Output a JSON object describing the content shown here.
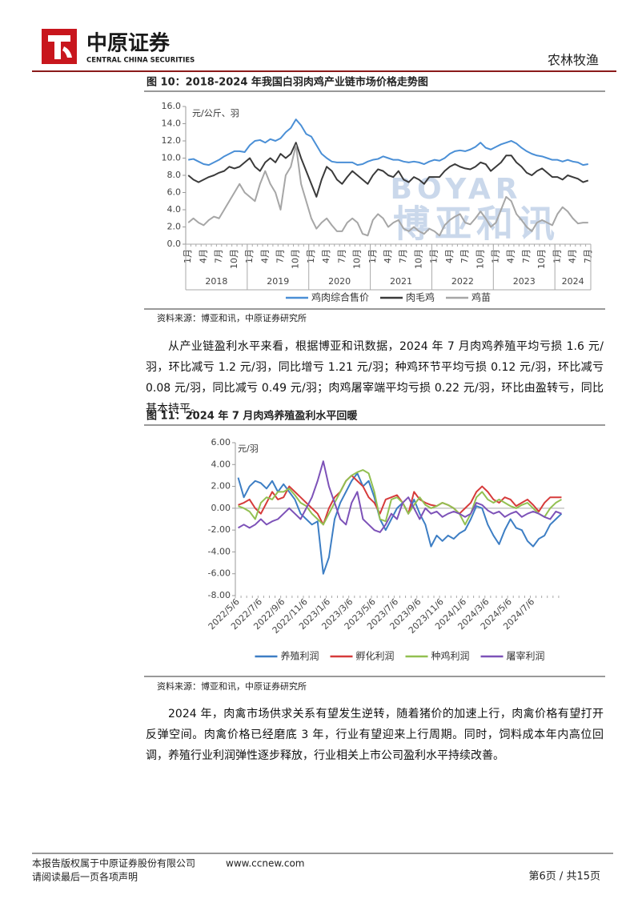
{
  "header": {
    "logo_name": "中原证券",
    "logo_subtitle": "CENTRAL CHINA SECURITIES",
    "section": "农林牧渔"
  },
  "chart_data": [
    {
      "type": "line",
      "title": "图 10：2018-2024 年我国白羽肉鸡产业链市场价格走势图",
      "source": "资料来源：博亚和讯，中原证券研究所",
      "unit": "元/公斤、羽",
      "watermark": [
        "BOYAR",
        "博亚和讯"
      ],
      "categories": [
        "1月",
        null,
        null,
        "4月",
        null,
        null,
        "7月",
        null,
        null,
        "10月",
        null,
        null,
        "1月",
        null,
        null,
        "4月",
        null,
        null,
        "7月",
        null,
        null,
        "10月",
        null,
        null,
        "1月",
        null,
        null,
        "4月",
        null,
        null,
        "7月",
        null,
        null,
        "10月",
        null,
        null,
        "1月",
        null,
        null,
        "4月",
        null,
        null,
        "7月",
        null,
        null,
        "10月",
        null,
        null,
        "1月",
        null,
        null,
        "4月",
        null,
        null,
        "7月",
        null,
        null,
        "10月",
        null,
        null,
        "1月",
        null,
        null,
        "4月",
        null,
        null,
        "7月",
        null,
        null,
        "10月",
        null,
        null,
        "1月",
        null,
        null,
        "4月",
        null,
        null,
        "7月"
      ],
      "x_groups": [
        "2018",
        "2019",
        "2020",
        "2021",
        "2022",
        "2023",
        "2024"
      ],
      "ylim": [
        0,
        16
      ],
      "yticks": [
        {
          "value": 0,
          "label": "0.0"
        },
        {
          "value": 2,
          "label": "2.0"
        },
        {
          "value": 4,
          "label": "4.0"
        },
        {
          "value": 6,
          "label": "6.0"
        },
        {
          "value": 8,
          "label": "8.0"
        },
        {
          "value": 10,
          "label": "10.0"
        },
        {
          "value": 12,
          "label": "12.0"
        },
        {
          "value": 14,
          "label": "14.0"
        },
        {
          "value": 16,
          "label": "16.0"
        }
      ],
      "grid": false,
      "legend": "bottom",
      "series": [
        {
          "name": "鸡肉综合售价",
          "color": "#4a8fd6",
          "values": [
            9.8,
            9.9,
            9.6,
            9.3,
            9.2,
            9.5,
            9.8,
            10.2,
            10.5,
            10.8,
            10.8,
            10.7,
            11.5,
            12.0,
            12.1,
            11.8,
            12.2,
            12.0,
            12.3,
            13.0,
            13.5,
            14.5,
            13.8,
            12.8,
            12.5,
            11.5,
            10.5,
            10.0,
            9.6,
            9.5,
            9.5,
            9.5,
            9.5,
            9.2,
            9.3,
            9.6,
            9.8,
            9.9,
            10.2,
            10.0,
            9.8,
            9.8,
            9.6,
            9.5,
            9.6,
            9.5,
            9.3,
            9.6,
            9.8,
            9.7,
            10.0,
            10.5,
            10.8,
            10.9,
            10.8,
            11.0,
            11.3,
            11.8,
            11.2,
            11.0,
            11.3,
            11.6,
            11.8,
            12.0,
            11.7,
            11.2,
            10.8,
            10.5,
            10.3,
            10.2,
            10.0,
            9.8,
            9.8,
            9.6,
            9.8,
            9.6,
            9.5,
            9.2,
            9.3
          ]
        },
        {
          "name": "肉毛鸡",
          "color": "#3a3a3a",
          "values": [
            8.0,
            7.5,
            7.2,
            7.5,
            7.8,
            8.0,
            8.3,
            8.5,
            9.0,
            8.8,
            9.0,
            9.5,
            10.0,
            9.0,
            8.5,
            9.5,
            10.0,
            9.5,
            10.5,
            10.0,
            10.5,
            11.8,
            10.0,
            8.5,
            7.0,
            5.5,
            7.5,
            9.0,
            8.5,
            7.5,
            7.0,
            7.8,
            8.5,
            8.0,
            7.5,
            7.0,
            8.0,
            8.7,
            8.5,
            8.0,
            7.8,
            8.5,
            7.5,
            7.2,
            7.8,
            7.5,
            7.0,
            7.8,
            7.8,
            7.8,
            8.5,
            9.0,
            9.3,
            9.0,
            8.8,
            8.7,
            9.0,
            9.5,
            9.3,
            8.5,
            9.0,
            9.5,
            10.3,
            10.3,
            9.5,
            9.0,
            8.3,
            8.0,
            8.5,
            8.8,
            8.3,
            7.8,
            7.8,
            7.5,
            8.0,
            7.8,
            7.6,
            7.2,
            7.4
          ]
        },
        {
          "name": "鸡苗",
          "color": "#a6a6a6",
          "values": [
            2.5,
            3.0,
            2.5,
            2.2,
            2.8,
            3.2,
            3.0,
            4.0,
            5.0,
            6.0,
            7.0,
            6.0,
            5.5,
            5.0,
            7.0,
            8.5,
            7.0,
            6.0,
            4.0,
            8.0,
            9.0,
            11.5,
            7.0,
            5.0,
            3.0,
            1.8,
            2.5,
            3.0,
            2.2,
            1.5,
            1.5,
            2.5,
            3.0,
            2.5,
            1.2,
            1.0,
            2.8,
            3.5,
            3.0,
            2.0,
            2.5,
            2.8,
            1.8,
            1.5,
            2.0,
            1.5,
            1.2,
            1.8,
            1.5,
            1.0,
            2.2,
            2.8,
            3.2,
            3.5,
            2.5,
            2.3,
            3.0,
            3.8,
            3.0,
            2.0,
            2.5,
            4.0,
            5.5,
            5.0,
            3.5,
            2.8,
            2.0,
            1.5,
            2.5,
            2.8,
            2.5,
            2.2,
            3.5,
            4.3,
            3.8,
            3.0,
            2.4,
            2.5,
            2.5
          ]
        }
      ]
    },
    {
      "type": "line",
      "title": "图 11：2024 年 7 月肉鸡养殖盈利水平回暖",
      "source": "资料来源：博亚和讯，中原证券研究所",
      "unit": "元/羽",
      "categories": [
        "2022/5/6",
        null,
        null,
        null,
        "2022/7/6",
        null,
        null,
        null,
        "2022/9/6",
        null,
        null,
        null,
        "2022/11/6",
        null,
        null,
        null,
        "2023/1/6",
        null,
        null,
        null,
        "2023/3/6",
        null,
        null,
        null,
        "2023/5/6",
        null,
        null,
        null,
        "2023/7/6",
        null,
        null,
        null,
        "2023/9/6",
        null,
        null,
        null,
        "2023/11/6",
        null,
        null,
        null,
        "2024/1/6",
        null,
        null,
        null,
        "2024/3/6",
        null,
        null,
        null,
        "2024/5/6",
        null,
        null,
        null,
        "2024/7/6",
        null,
        null,
        null,
        null,
        null
      ],
      "ylim": [
        -8,
        6
      ],
      "yticks": [
        {
          "value": -8,
          "label": "-8.00"
        },
        {
          "value": -6,
          "label": "-6.00"
        },
        {
          "value": -4,
          "label": "-4.00"
        },
        {
          "value": -2,
          "label": "-2.00"
        },
        {
          "value": 0,
          "label": "0.00"
        },
        {
          "value": 2,
          "label": "2.00"
        },
        {
          "value": 4,
          "label": "4.00"
        },
        {
          "value": 6,
          "label": "6.00"
        }
      ],
      "grid": false,
      "legend": "bottom",
      "series": [
        {
          "name": "养殖利润",
          "color": "#3d7ec4",
          "values": [
            2.8,
            1.0,
            2.0,
            2.5,
            2.3,
            1.8,
            2.5,
            1.5,
            2.2,
            1.5,
            0.8,
            -0.5,
            -1.0,
            -1.5,
            -1.2,
            -6.0,
            -4.5,
            -1.0,
            0.5,
            1.5,
            2.5,
            3.2,
            2.0,
            2.5,
            1.0,
            -1.0,
            -2.0,
            -1.0,
            0.0,
            0.5,
            -0.5,
            0.8,
            -0.5,
            -1.5,
            -3.5,
            -2.5,
            -3.0,
            -2.5,
            -2.8,
            -2.3,
            -2.0,
            -1.0,
            0.2,
            0.0,
            -1.5,
            -2.5,
            -3.3,
            -2.0,
            -1.0,
            -1.8,
            -2.0,
            -3.0,
            -3.5,
            -2.8,
            -2.5,
            -1.5,
            -1.0,
            -0.5
          ]
        },
        {
          "name": "孵化利润",
          "color": "#d63b3b",
          "values": [
            0.3,
            0.5,
            0.8,
            0.0,
            -0.5,
            0.5,
            1.5,
            0.8,
            1.0,
            2.0,
            1.5,
            1.0,
            0.5,
            0.0,
            -0.5,
            -1.5,
            0.0,
            1.0,
            1.5,
            2.5,
            3.0,
            2.5,
            2.0,
            1.0,
            0.5,
            -0.5,
            0.8,
            1.0,
            1.2,
            0.5,
            -0.5,
            1.5,
            0.8,
            0.5,
            0.3,
            0.2,
            0.5,
            0.3,
            0.0,
            -0.5,
            0.0,
            0.5,
            1.5,
            2.0,
            1.5,
            0.8,
            0.5,
            1.0,
            0.8,
            0.2,
            0.5,
            0.8,
            0.3,
            -0.3,
            0.5,
            1.0,
            1.0,
            1.0
          ]
        },
        {
          "name": "种鸡利润",
          "color": "#92c051",
          "values": [
            0.2,
            0.0,
            -0.3,
            -1.0,
            0.5,
            1.0,
            0.8,
            1.5,
            1.5,
            1.8,
            1.2,
            0.5,
            0.2,
            -0.5,
            -1.0,
            -1.5,
            -0.5,
            0.5,
            1.5,
            2.5,
            3.0,
            3.3,
            3.5,
            3.2,
            1.5,
            -1.0,
            -1.2,
            0.8,
            1.0,
            0.5,
            -0.5,
            0.3,
            1.0,
            0.3,
            0.0,
            0.2,
            0.5,
            0.3,
            0.0,
            -0.5,
            -1.5,
            -0.5,
            1.0,
            1.5,
            0.8,
            0.5,
            0.8,
            0.5,
            0.2,
            0.0,
            0.3,
            0.5,
            0.0,
            -0.5,
            -0.8,
            0.0,
            0.5,
            0.8
          ]
        },
        {
          "name": "屠宰利润",
          "color": "#7d52b8",
          "values": [
            -1.8,
            -1.5,
            -1.8,
            -1.5,
            -1.0,
            -1.5,
            -1.2,
            -1.0,
            -0.5,
            0.0,
            -0.5,
            -1.0,
            0.0,
            1.0,
            2.5,
            4.3,
            2.0,
            0.5,
            -1.0,
            -1.5,
            0.5,
            1.5,
            -1.0,
            -1.5,
            -2.0,
            -2.2,
            -1.5,
            -0.5,
            -1.0,
            0.5,
            1.0,
            0.0,
            -1.0,
            0.0,
            -0.5,
            -0.3,
            -0.8,
            -0.5,
            -0.3,
            -0.5,
            -0.8,
            -0.5,
            0.5,
            0.3,
            -0.2,
            -0.5,
            -0.3,
            -0.8,
            -0.5,
            -0.3,
            -0.8,
            -0.5,
            -0.3,
            -0.5,
            -0.8,
            -1.0,
            -0.3,
            -0.5
          ]
        }
      ]
    }
  ],
  "paragraphs": [
    "从产业链盈利水平来看，根据博亚和讯数据，2024 年 7 月肉鸡养殖平均亏损 1.6 元/羽，环比减亏 1.2 元/羽，同比增亏 1.21 元/羽；种鸡环节平均亏损 0.12 元/羽，环比减亏 0.08 元/羽，同比减亏 0.49 元/羽；肉鸡屠宰端平均亏损 0.22 元/羽，环比由盈转亏，同比基本持平。",
    "2024 年，肉禽市场供求关系有望发生逆转，随着猪价的加速上行，肉禽价格有望打开反弹空间。肉禽价格已经磨底 3 年，行业有望迎来上行周期。同时，饲料成本年内高位回调，养殖行业利润弹性逐步释放，行业相关上市公司盈利水平持续改善。"
  ],
  "footer": {
    "copyright": "本报告版权属于中原证券股份有限公司",
    "website": "www.ccnew.com",
    "notice": "请阅读最后一页各项声明",
    "page": "第6页 / 共15页"
  }
}
